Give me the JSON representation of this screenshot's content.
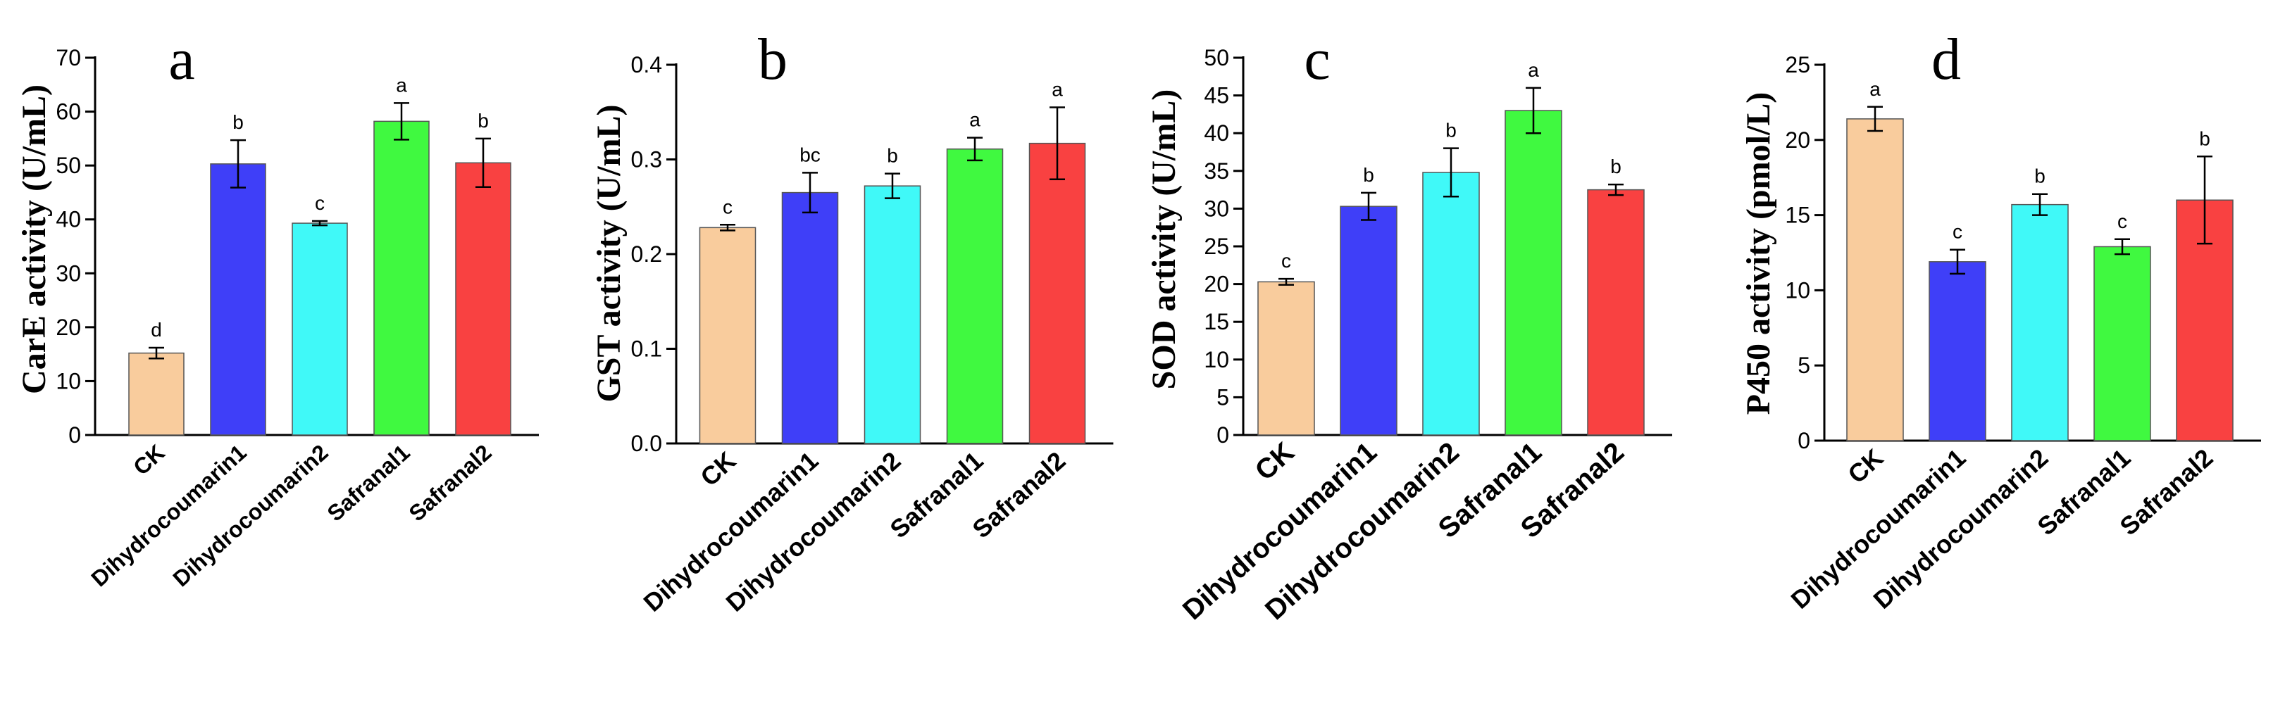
{
  "colors": {
    "CK": "#f9cc9d",
    "Dihydrocoumarin1": "#3f3ff8",
    "Dihydrocoumarin2": "#40f9f8",
    "Safranal1": "#40f940",
    "Safranal2": "#f94141"
  },
  "chart_data": [
    {
      "type": "bar",
      "panel": "a",
      "ylabel": "CarE activity (U/mL)",
      "ylim": [
        0,
        70
      ],
      "yticks": [
        0,
        10,
        20,
        30,
        40,
        50,
        60,
        70
      ],
      "categories": [
        "CK",
        "Dihydrocoumarin1",
        "Dihydrocoumarin2",
        "Safranal1",
        "Safranal2"
      ],
      "values": [
        15.2,
        50.3,
        39.3,
        58.2,
        50.5
      ],
      "errors": [
        1.0,
        4.4,
        0.4,
        3.4,
        4.5
      ],
      "letters": [
        "d",
        "b",
        "c",
        "a",
        "b"
      ]
    },
    {
      "type": "bar",
      "panel": "b",
      "ylabel": "GST activity (U/mL)",
      "ylim": [
        0,
        0.4
      ],
      "yticks": [
        "0.0",
        "0.1",
        "0.2",
        "0.3",
        "0.4"
      ],
      "categories": [
        "CK",
        "Dihydrocoumarin1",
        "Dihydrocoumarin2",
        "Safranal1",
        "Safranal2"
      ],
      "values": [
        0.228,
        0.265,
        0.272,
        0.311,
        0.317
      ],
      "errors": [
        0.003,
        0.021,
        0.013,
        0.012,
        0.038
      ],
      "letters": [
        "c",
        "bc",
        "b",
        "a",
        "a"
      ]
    },
    {
      "type": "bar",
      "panel": "c",
      "ylabel": "SOD activity (U/mL)",
      "ylim": [
        0,
        50
      ],
      "yticks": [
        0,
        5,
        10,
        15,
        20,
        25,
        30,
        35,
        40,
        45,
        50
      ],
      "categories": [
        "CK",
        "Dihydrocoumarin1",
        "Dihydrocoumarin2",
        "Safranal1",
        "Safranal2"
      ],
      "values": [
        20.3,
        30.3,
        34.8,
        43.0,
        32.5
      ],
      "errors": [
        0.4,
        1.8,
        3.2,
        3.0,
        0.7
      ],
      "letters": [
        "c",
        "b",
        "b",
        "a",
        "b"
      ]
    },
    {
      "type": "bar",
      "panel": "d",
      "ylabel": "P450 activity (pmol/L)",
      "ylim": [
        0,
        25
      ],
      "yticks": [
        0,
        5,
        10,
        15,
        20,
        25
      ],
      "categories": [
        "CK",
        "Dihydrocoumarin1",
        "Dihydrocoumarin2",
        "Safranal1",
        "Safranal2"
      ],
      "values": [
        21.4,
        11.9,
        15.7,
        12.9,
        16.0
      ],
      "errors": [
        0.8,
        0.8,
        0.7,
        0.5,
        2.9
      ],
      "letters": [
        "a",
        "c",
        "b",
        "c",
        "b"
      ]
    }
  ]
}
